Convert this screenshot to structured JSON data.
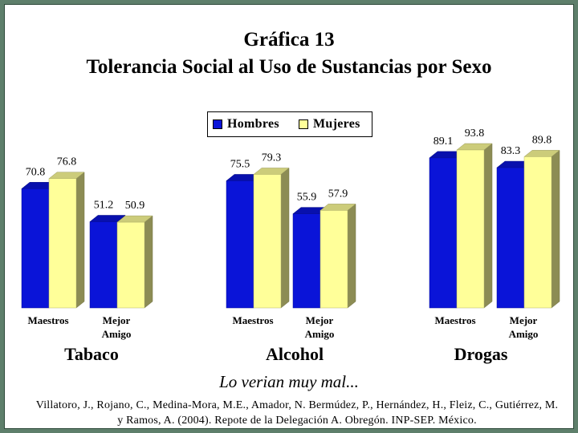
{
  "title_line1": "Gráfica 13",
  "title_line2": "Tolerancia Social al Uso de Sustancias por Sexo",
  "subtitle": "Lo verian muy mal...",
  "citation": "Villatoro, J., Rojano, C., Medina-Mora, M.E., Amador, N. Bermúdez, P., Hernández, H., Fleiz, C., Gutiérrez, M. y Ramos, A. (2004). Repote de la Delegación A. Obregón. INP-SEP. México.",
  "colors": {
    "hombres": "#0a14d8",
    "mujeres": "#ffff99",
    "background": "#5e7f6b"
  },
  "chart_data": {
    "type": "bar",
    "legend": "top-center",
    "grid": false,
    "ylim": [
      0,
      100
    ],
    "groups": [
      {
        "name": "Tabaco",
        "categories": [
          "Maestros",
          "Mejor\nAmigo"
        ]
      },
      {
        "name": "Alcohol",
        "categories": [
          "Maestros",
          "Mejor\nAmigo"
        ]
      },
      {
        "name": "Drogas",
        "categories": [
          "Maestros",
          "Mejor\nAmigo"
        ]
      }
    ],
    "series": [
      {
        "name": "Hombres",
        "values": [
          70.8,
          51.2,
          75.5,
          55.9,
          89.1,
          83.3
        ]
      },
      {
        "name": "Mujeres",
        "values": [
          76.8,
          50.9,
          79.3,
          57.9,
          93.8,
          89.8
        ]
      }
    ],
    "value_labels": {
      "Hombres": [
        "70.8",
        "51.2",
        "75.5",
        "55.9",
        "89.1",
        "83.3"
      ],
      "Mujeres": [
        "76.8",
        "50.9",
        "79.3",
        "57.9",
        "93.8",
        "89.8"
      ]
    }
  }
}
